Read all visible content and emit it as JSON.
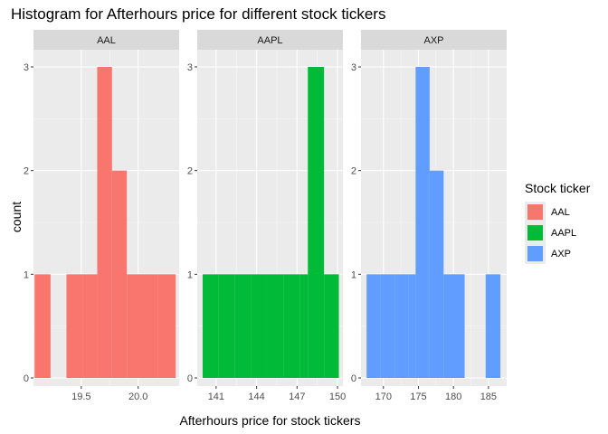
{
  "chart_data": {
    "type": "bar",
    "title": "Histogram for Afterhours price for different stock tickers",
    "xlabel": "Afterhours price for stock tickers",
    "ylabel": "count",
    "ylim": [
      0,
      3
    ],
    "yticks": [
      0,
      1,
      2,
      3
    ],
    "grid": true,
    "legend_placement": "right",
    "legend_title": "Stock ticker",
    "facets": [
      {
        "name": "AAL",
        "color": "#F8766D",
        "xlim": [
          19.08,
          20.36
        ],
        "xticks": [
          19.5,
          20.0
        ],
        "xtick_labels": [
          "19.5",
          "20.0"
        ],
        "bins": [
          {
            "x0": 19.09,
            "x1": 19.23,
            "count": 1
          },
          {
            "x0": 19.23,
            "x1": 19.37,
            "count": 0
          },
          {
            "x0": 19.37,
            "x1": 19.51,
            "count": 1
          },
          {
            "x0": 19.51,
            "x1": 19.64,
            "count": 1
          },
          {
            "x0": 19.64,
            "x1": 19.77,
            "count": 3
          },
          {
            "x0": 19.77,
            "x1": 19.9,
            "count": 2
          },
          {
            "x0": 19.9,
            "x1": 20.03,
            "count": 1
          },
          {
            "x0": 20.03,
            "x1": 20.17,
            "count": 1
          },
          {
            "x0": 20.17,
            "x1": 20.33,
            "count": 1
          }
        ]
      },
      {
        "name": "AAPL",
        "color": "#00BA38",
        "xlim": [
          139.6,
          150.4
        ],
        "xticks": [
          141,
          144,
          147,
          150
        ],
        "xtick_labels": [
          "141",
          "144",
          "147",
          "150"
        ],
        "bins": [
          {
            "x0": 140.0,
            "x1": 141.2,
            "count": 1
          },
          {
            "x0": 141.2,
            "x1": 142.4,
            "count": 1
          },
          {
            "x0": 142.4,
            "x1": 143.6,
            "count": 1
          },
          {
            "x0": 143.6,
            "x1": 144.8,
            "count": 1
          },
          {
            "x0": 144.8,
            "x1": 146.0,
            "count": 1
          },
          {
            "x0": 146.0,
            "x1": 147.2,
            "count": 1
          },
          {
            "x0": 147.2,
            "x1": 147.8,
            "count": 1
          },
          {
            "x0": 147.8,
            "x1": 149.0,
            "count": 3
          },
          {
            "x0": 149.0,
            "x1": 150.1,
            "count": 1
          }
        ]
      },
      {
        "name": "AXP",
        "color": "#619CFF",
        "xlim": [
          166.8,
          187.6
        ],
        "xticks": [
          170,
          175,
          180,
          185
        ],
        "xtick_labels": [
          "170",
          "175",
          "180",
          "185"
        ],
        "bins": [
          {
            "x0": 167.6,
            "x1": 169.6,
            "count": 1
          },
          {
            "x0": 169.6,
            "x1": 171.6,
            "count": 1
          },
          {
            "x0": 171.6,
            "x1": 173.6,
            "count": 1
          },
          {
            "x0": 173.6,
            "x1": 174.6,
            "count": 1
          },
          {
            "x0": 174.6,
            "x1": 176.6,
            "count": 3
          },
          {
            "x0": 176.6,
            "x1": 178.6,
            "count": 2
          },
          {
            "x0": 178.6,
            "x1": 181.6,
            "count": 1
          },
          {
            "x0": 181.6,
            "x1": 184.6,
            "count": 0
          },
          {
            "x0": 184.6,
            "x1": 186.7,
            "count": 1
          }
        ]
      }
    ]
  }
}
